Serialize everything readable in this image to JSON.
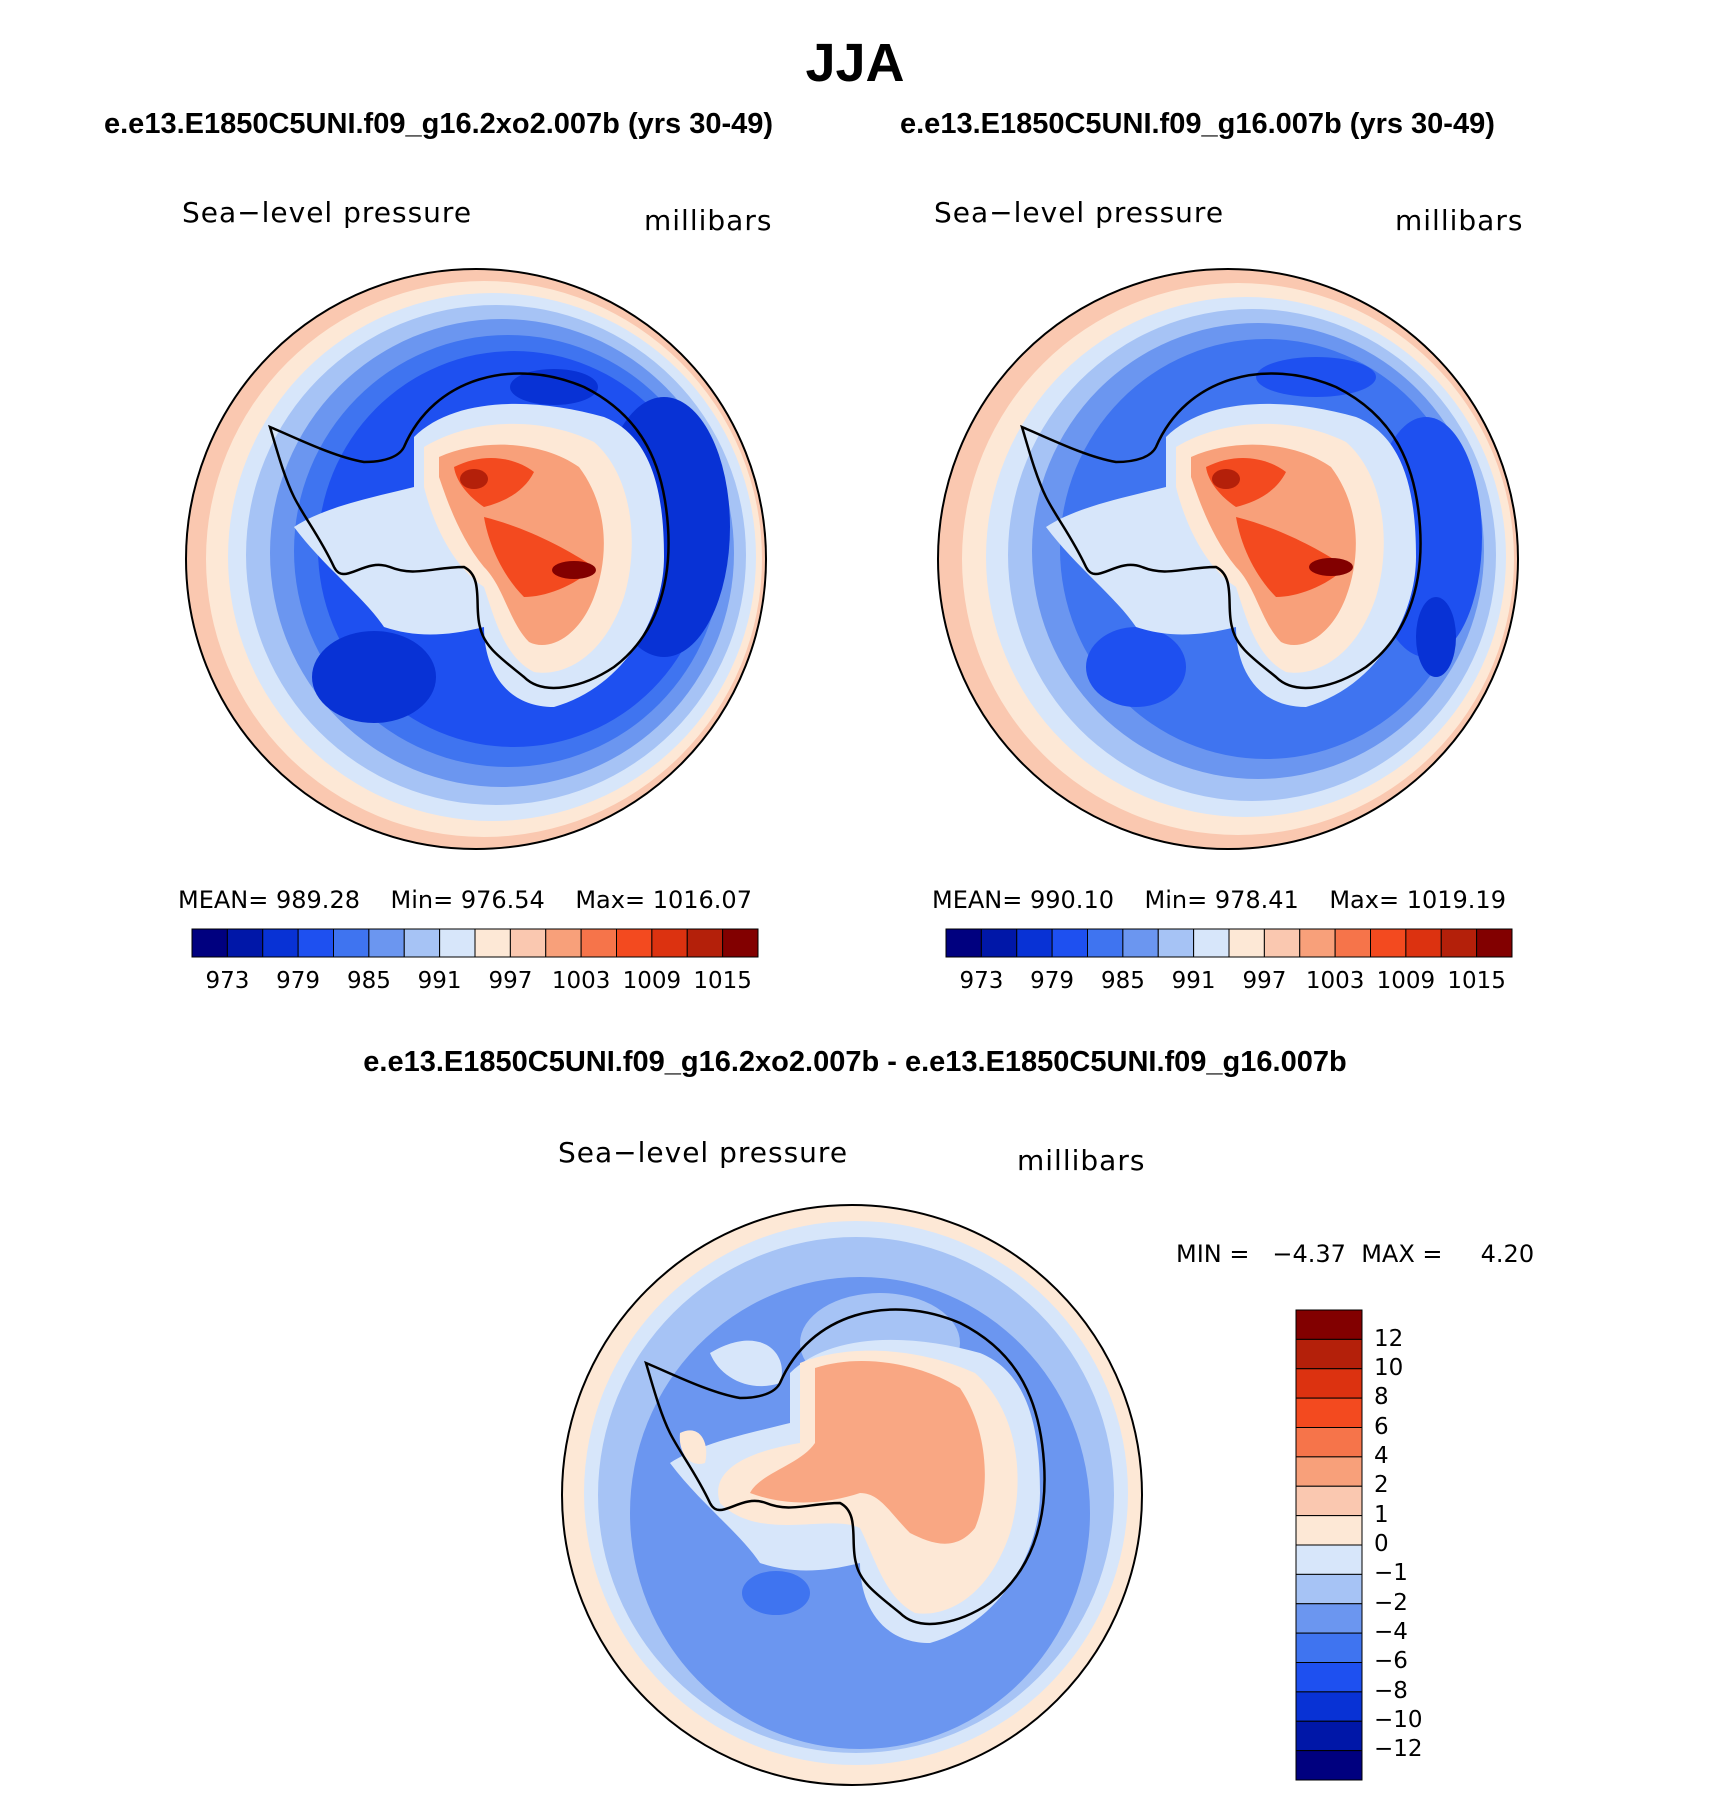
{
  "figure": {
    "season": "JJA",
    "case_a_title": "e.e13.E1850C5UNI.f09_g16.2xo2.007b (yrs 30-49)",
    "case_b_title": "e.e13.E1850C5UNI.f09_g16.007b (yrs 30-49)",
    "diff_title": "e.e13.E1850C5UNI.f09_g16.2xo2.007b - e.e13.E1850C5UNI.f09_g16.007b"
  },
  "panels": [
    {
      "id": "case-a",
      "variable": "Sea−level pressure",
      "units": "millibars",
      "mean_label": "MEAN=",
      "mean": "989.28",
      "min_label": "Min=",
      "min": "976.54",
      "max_label": "Max=",
      "max": "1016.07"
    },
    {
      "id": "case-b",
      "variable": "Sea−level pressure",
      "units": "millibars",
      "mean_label": "MEAN=",
      "mean": "990.10",
      "min_label": "Min=",
      "min": "978.41",
      "max_label": "Max=",
      "max": "1019.19"
    },
    {
      "id": "difference",
      "variable": "Sea−level pressure",
      "units": "millibars",
      "min_label": "MIN =",
      "min": "−4.37",
      "max_label": "MAX =",
      "max": "4.20"
    }
  ],
  "abs_colorbar": {
    "ticks": [
      "973",
      "979",
      "985",
      "991",
      "997",
      "1003",
      "1009",
      "1015"
    ],
    "colors": [
      "#00007f",
      "#0017a8",
      "#0832d5",
      "#1e50f0",
      "#3f74f0",
      "#6b96f0",
      "#a6c3f5",
      "#d7e6fa",
      "#fde8d6",
      "#fac8b0",
      "#f8a07a",
      "#f6744a",
      "#f34a1f",
      "#dc3210",
      "#b4200a",
      "#820000"
    ]
  },
  "diff_colorbar": {
    "ticks": [
      "12",
      "10",
      "8",
      "6",
      "4",
      "2",
      "1",
      "0",
      "−1",
      "−2",
      "−4",
      "−6",
      "−8",
      "−10",
      "−12"
    ],
    "colors_top_to_bottom": [
      "#820000",
      "#b4200a",
      "#dc3210",
      "#f34a1f",
      "#f6744a",
      "#f8a07a",
      "#fac8b0",
      "#fde8d6",
      "#d7e6fa",
      "#a6c3f5",
      "#6b96f0",
      "#3f74f0",
      "#1e50f0",
      "#0832d5",
      "#0017a8",
      "#00007f"
    ]
  },
  "chart_data": [
    {
      "type": "heatmap",
      "title": "e.e13.E1850C5UNI.f09_g16.2xo2.007b (yrs 30-49)",
      "projection": "south polar stereographic",
      "field": "Sea-level pressure (millibars)",
      "levels": [
        973,
        976,
        979,
        982,
        985,
        988,
        991,
        994,
        997,
        1000,
        1003,
        1006,
        1009,
        1012,
        1015
      ],
      "mean": 989.28,
      "min": 976.54,
      "max": 1016.07
    },
    {
      "type": "heatmap",
      "title": "e.e13.E1850C5UNI.f09_g16.007b (yrs 30-49)",
      "projection": "south polar stereographic",
      "field": "Sea-level pressure (millibars)",
      "levels": [
        973,
        976,
        979,
        982,
        985,
        988,
        991,
        994,
        997,
        1000,
        1003,
        1006,
        1009,
        1012,
        1015
      ],
      "mean": 990.1,
      "min": 978.41,
      "max": 1019.19
    },
    {
      "type": "heatmap",
      "title": "e.e13.E1850C5UNI.f09_g16.2xo2.007b - e.e13.E1850C5UNI.f09_g16.007b",
      "projection": "south polar stereographic",
      "field": "Sea-level pressure difference (millibars)",
      "levels": [
        -12,
        -10,
        -8,
        -6,
        -4,
        -2,
        -1,
        0,
        1,
        2,
        4,
        6,
        8,
        10,
        12
      ],
      "min": -4.37,
      "max": 4.2
    }
  ]
}
